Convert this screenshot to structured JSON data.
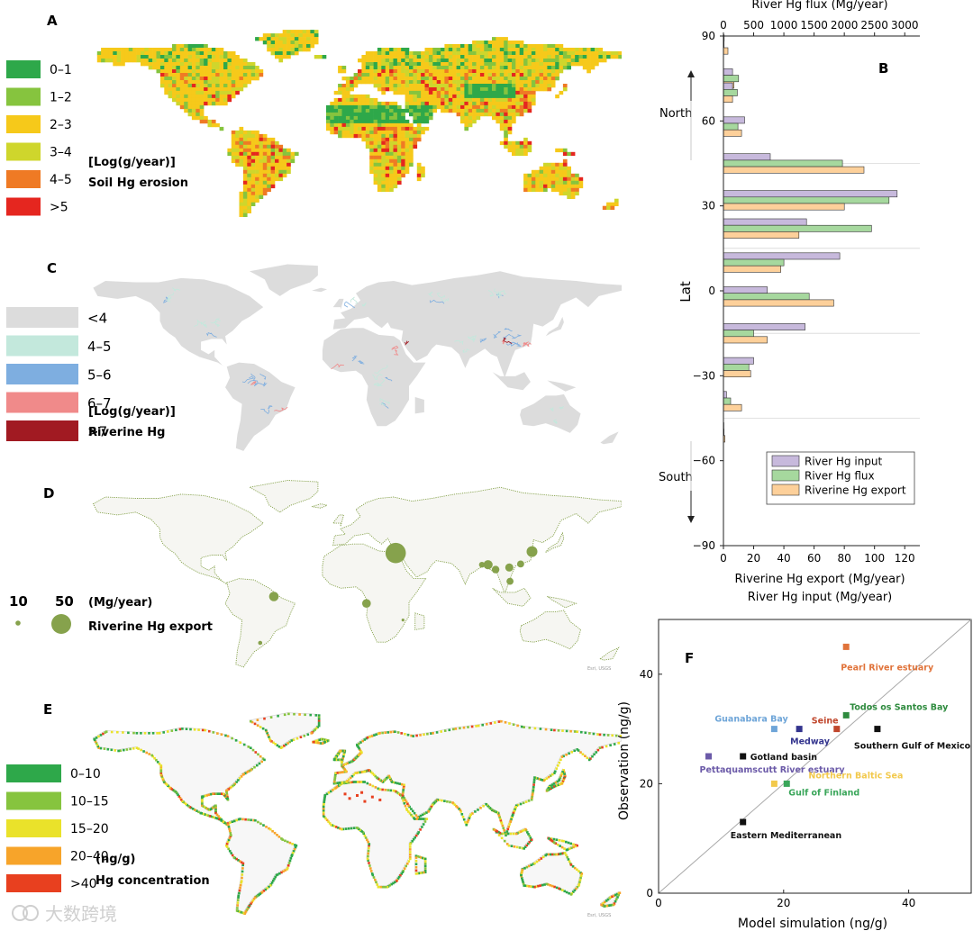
{
  "panels": {
    "A": {
      "letter": "A",
      "unit": "[Log(g/year)]",
      "title": "Soil Hg erosion",
      "legend": [
        {
          "label": "0–1",
          "color": "#2ea84a"
        },
        {
          "label": "1–2",
          "color": "#86c43e"
        },
        {
          "label": "2–3",
          "color": "#f6c91a"
        },
        {
          "label": "3–4",
          "color": "#cfd62c"
        },
        {
          "label": "4–5",
          "color": "#ef7a24"
        },
        {
          "label": ">5",
          "color": "#e5261f"
        }
      ]
    },
    "C": {
      "letter": "C",
      "unit": "[Log(g/year)]",
      "title": "Riverine Hg",
      "legend": [
        {
          "label": "<4",
          "color": "#dcdcdc"
        },
        {
          "label": "4–5",
          "color": "#c3e8dc"
        },
        {
          "label": "5–6",
          "color": "#7eaee0"
        },
        {
          "label": "6–7",
          "color": "#f08a8a"
        },
        {
          "label": ">7",
          "color": "#a11a22"
        }
      ]
    },
    "D": {
      "letter": "D",
      "unit": "(Mg/year)",
      "title": "Riverine Hg export",
      "size_legend": [
        {
          "label": "10"
        },
        {
          "label": "50"
        }
      ],
      "color": "#86a24c",
      "credit": "Esri, USGS",
      "bubbles": [
        {
          "lon": 31.2,
          "lat": 30.5,
          "value": 50
        },
        {
          "lon": 121,
          "lat": 31.5,
          "value": 14
        },
        {
          "lon": 92,
          "lat": 22,
          "value": 10
        },
        {
          "lon": 97,
          "lat": 18.5,
          "value": 7
        },
        {
          "lon": 106,
          "lat": 20,
          "value": 8
        },
        {
          "lon": 113.5,
          "lat": 22.5,
          "value": 6
        },
        {
          "lon": 106.5,
          "lat": 10,
          "value": 6
        },
        {
          "lon": -49,
          "lat": -1,
          "value": 11
        },
        {
          "lon": 12,
          "lat": -6,
          "value": 9
        },
        {
          "lon": -58,
          "lat": -34.5,
          "value": 2
        },
        {
          "lon": 88,
          "lat": 22,
          "value": 4
        },
        {
          "lon": 36,
          "lat": -18,
          "value": 1
        }
      ]
    },
    "E": {
      "letter": "E",
      "unit": "(ng/g)",
      "title": "Hg concentration",
      "credit": "Esri, USGS",
      "legend": [
        {
          "label": "0–10",
          "color": "#2ea84a"
        },
        {
          "label": "10–15",
          "color": "#86c43e"
        },
        {
          "label": "15–20",
          "color": "#eae22a"
        },
        {
          "label": "20–40",
          "color": "#f7a42a"
        },
        {
          "label": ">40",
          "color": "#e8401f"
        }
      ]
    }
  },
  "watermark": "大数跨境",
  "chart_data": [
    {
      "panel": "B",
      "type": "bar",
      "orientation": "horizontal",
      "letter": "B",
      "ylabel": "Lat",
      "ylim": [
        -90,
        90
      ],
      "yticks": [
        90,
        60,
        30,
        0,
        -30,
        -60,
        -90
      ],
      "bottom_axis": {
        "label_line1": "Riverine Hg export (Mg/year)",
        "label_line2": "River Hg input (Mg/year)",
        "lim": [
          0,
          130
        ],
        "ticks": [
          0,
          20,
          40,
          60,
          80,
          100,
          120
        ]
      },
      "top_axis": {
        "label": "River Hg flux (Mg/year)",
        "lim": [
          0,
          3250
        ],
        "ticks": [
          0,
          500,
          1000,
          1500,
          2000,
          2500,
          3000
        ]
      },
      "direction_labels": {
        "north": "North",
        "south": "South"
      },
      "latitudes": [
        82.5,
        67.5,
        52.5,
        37.5,
        22.5,
        7.5,
        -7.5,
        -22.5,
        -37.5,
        -52.5
      ],
      "series": [
        {
          "name": "River Hg input",
          "axis": "bottom",
          "color": "#c7b9dc",
          "values": [
            0.5,
            6,
            6,
            14,
            31,
            115,
            55,
            77,
            29,
            54,
            20,
            2,
            0.3
          ]
        },
        {
          "name": "River Hg flux",
          "axis": "top",
          "color": "#a6d89e",
          "values": [
            10,
            250,
            230,
            240,
            1970,
            2740,
            2450,
            1000,
            1420,
            500,
            420,
            120,
            10
          ]
        },
        {
          "name": "Riverine Hg export",
          "axis": "bottom",
          "color": "#fdd09a",
          "values": [
            3,
            7,
            6,
            12,
            93,
            80,
            50,
            38,
            73,
            29,
            18,
            12,
            1
          ]
        }
      ],
      "bar_latitudes": [
        87,
        75,
        70,
        58,
        45,
        32,
        22,
        10,
        -2,
        -15,
        -27,
        -39,
        -50
      ],
      "dividers": [
        45,
        15,
        -15,
        -45
      ]
    },
    {
      "panel": "F",
      "type": "scatter",
      "letter": "F",
      "xlabel": "Model simulation (ng/g)",
      "ylabel": "Observation (ng/g)",
      "xlim": [
        0,
        50
      ],
      "ylim": [
        0,
        50
      ],
      "xticks": [
        0,
        20,
        40
      ],
      "yticks": [
        0,
        20,
        40
      ],
      "identity_line": true,
      "points": [
        {
          "label": "Pearl River estuary",
          "x": 30,
          "y": 45,
          "color": "#e0733a"
        },
        {
          "label": "Todos os Santos Bay",
          "x": 30,
          "y": 32.5,
          "color": "#2e8b3e"
        },
        {
          "label": "Seine",
          "x": 28.5,
          "y": 30,
          "color": "#c0462c"
        },
        {
          "label": "Southern Gulf of Mexico",
          "x": 35,
          "y": 30,
          "color": "#111111"
        },
        {
          "label": "Guanabara Bay",
          "x": 18.5,
          "y": 30,
          "color": "#6ea5d8"
        },
        {
          "label": "Medway",
          "x": 22.5,
          "y": 30,
          "color": "#33348e"
        },
        {
          "label": "Gotland basin",
          "x": 13.5,
          "y": 25,
          "color": "#111111"
        },
        {
          "label": "Pettaquamscutt River estuary",
          "x": 8,
          "y": 25,
          "color": "#6b5aa8"
        },
        {
          "label": "Northern Baltic Sea",
          "x": 18.5,
          "y": 20,
          "color": "#f2c94c"
        },
        {
          "label": "Gulf of Finland",
          "x": 20.5,
          "y": 20,
          "color": "#3aa65a"
        },
        {
          "label": "Eastern Mediterranean",
          "x": 13.5,
          "y": 13,
          "color": "#111111"
        }
      ]
    }
  ]
}
